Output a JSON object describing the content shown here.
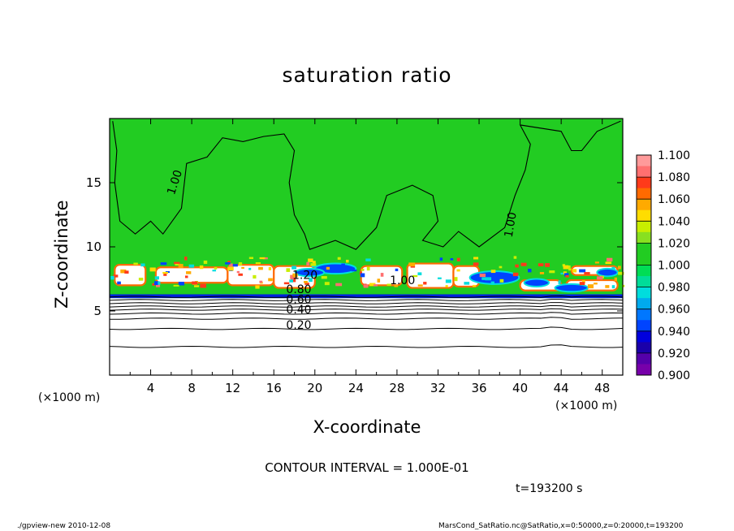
{
  "chart_data": {
    "type": "heatmap",
    "title": "saturation ratio",
    "xlabel": "X-coordinate",
    "ylabel": "Z-coordinate",
    "x_unit_label": "(×1000 m)",
    "x_unit_label_right": "(×1000 m)",
    "xlim": [
      0,
      50
    ],
    "ylim": [
      0,
      20
    ],
    "x_ticks": [
      "4",
      "8",
      "12",
      "16",
      "20",
      "24",
      "28",
      "32",
      "36",
      "40",
      "44",
      "48"
    ],
    "x_tick_values": [
      4,
      8,
      12,
      16,
      20,
      24,
      28,
      32,
      36,
      40,
      44,
      48
    ],
    "y_ticks": [
      "5",
      "10",
      "15"
    ],
    "y_tick_values": [
      5,
      10,
      15
    ],
    "colorbar": {
      "labels": [
        "1.100",
        "1.080",
        "1.060",
        "1.040",
        "1.020",
        "1.000",
        "0.980",
        "0.960",
        "0.940",
        "0.920",
        "0.900"
      ],
      "values": [
        1.1,
        1.08,
        1.06,
        1.04,
        1.02,
        1.0,
        0.98,
        0.96,
        0.94,
        0.92,
        0.9
      ],
      "colors": [
        "#ff9a9a",
        "#ff7070",
        "#ff3a1a",
        "#ff6a00",
        "#ffaa00",
        "#ffdd00",
        "#c8ee00",
        "#88e020",
        "#22cc22",
        "#22cc22",
        "#00dd55",
        "#00dd99",
        "#00dddd",
        "#00aaee",
        "#0077ff",
        "#0044ff",
        "#0000dd",
        "#1a00aa",
        "#5500aa",
        "#7700aa"
      ]
    },
    "contour_labels": [
      {
        "text": "1.00",
        "x": 6.3,
        "y": 14.0,
        "rotate": -72
      },
      {
        "text": "1.00",
        "x": 39.2,
        "y": 10.7,
        "rotate": -80
      },
      {
        "text": "1.20",
        "x": 17.8,
        "y": 7.5,
        "rotate": 0
      },
      {
        "text": "1.00",
        "x": 27.3,
        "y": 7.1,
        "rotate": 0
      },
      {
        "text": "0.80",
        "x": 17.2,
        "y": 6.4,
        "rotate": 0
      },
      {
        "text": "0.60",
        "x": 17.2,
        "y": 5.6,
        "rotate": 0
      },
      {
        "text": "0.40",
        "x": 17.2,
        "y": 4.8,
        "rotate": 0
      },
      {
        "text": "0.20",
        "x": 17.2,
        "y": 3.6,
        "rotate": 0
      }
    ],
    "layers": {
      "uniform_above_z": 8.5,
      "uniform_value": 1.0,
      "cloud_layer_z": [
        5.8,
        9.8
      ],
      "subsaturated_below_z": 6.0
    }
  },
  "annotations": {
    "contour_interval": "CONTOUR INTERVAL = 1.000E-01",
    "time": "t=193200 s",
    "footer_left": "./gpview-new  2010-12-08",
    "footer_right": "MarsCond_SatRatio.nc@SatRatio,x=0:50000,z=0:20000,t=193200"
  }
}
